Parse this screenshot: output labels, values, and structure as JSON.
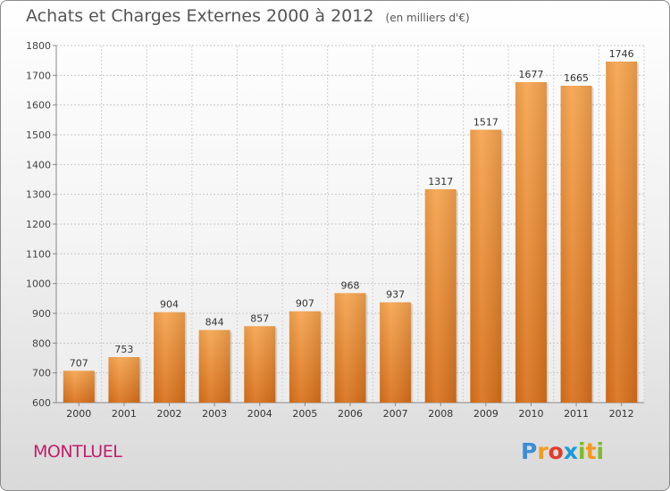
{
  "chart_data": {
    "type": "bar",
    "title": "Achats et Charges Externes 2000 à 2012",
    "subtitle": "(en milliers d'€)",
    "categories": [
      "2000",
      "2001",
      "2002",
      "2003",
      "2004",
      "2005",
      "2006",
      "2007",
      "2008",
      "2009",
      "2010",
      "2011",
      "2012"
    ],
    "values": [
      707,
      753,
      904,
      844,
      857,
      907,
      968,
      937,
      1317,
      1517,
      1677,
      1665,
      1746
    ],
    "ylim": [
      600,
      1800
    ],
    "yticks": [
      600,
      700,
      800,
      900,
      1000,
      1100,
      1200,
      1300,
      1400,
      1500,
      1600,
      1700,
      1800
    ],
    "grid": true,
    "bar_color_top": "#f6a44e",
    "bar_color_bottom": "#d9701a"
  },
  "place_name": "MONTLUEL",
  "logo": {
    "letters": [
      "P",
      "r",
      "o",
      "x",
      "i",
      "t",
      "i"
    ],
    "colors": [
      "#3a8ed8",
      "#f29b1c",
      "#e23b2a",
      "#1a9ad6",
      "#7cbc2a",
      "#f29b1c",
      "#7cbc2a"
    ]
  }
}
